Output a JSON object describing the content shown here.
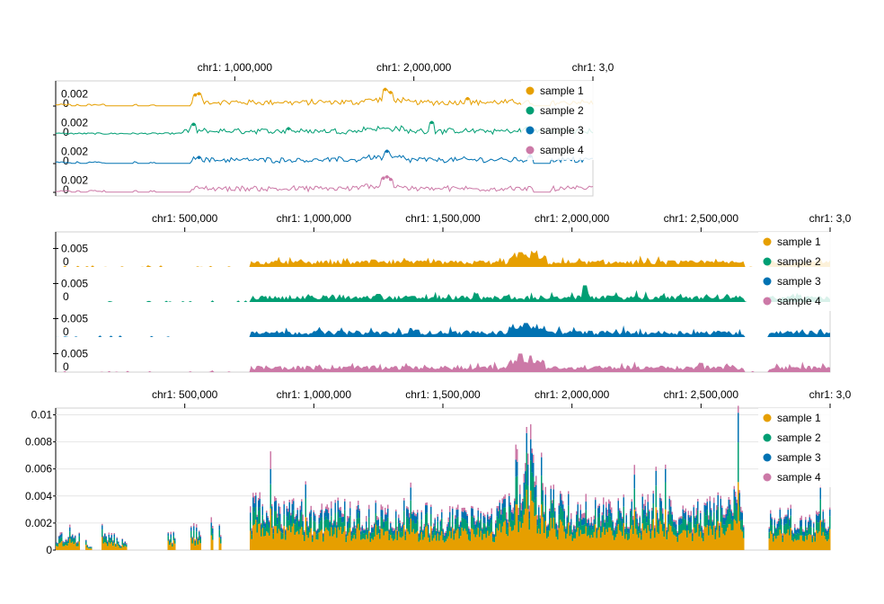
{
  "chart_data": [
    {
      "type": "line",
      "layout": "stacked-tracks",
      "x_ticks": [
        1000000,
        2000000,
        3000000
      ],
      "x_tick_labels": [
        "chr1: 1,000,000",
        "chr1: 2,000,000",
        "chr1: 3,0"
      ],
      "xlim": [
        0,
        3000000
      ],
      "track_ylim": [
        0,
        0.0035
      ],
      "track_y_ticks": [
        "0.002",
        "0"
      ],
      "legend_position": "top-right",
      "grid": false,
      "series": [
        {
          "name": "sample 1",
          "color": "#E69F00",
          "peaks": [
            [
              780000,
              0.0018
            ],
            [
              800000,
              0.002
            ],
            [
              1840000,
              0.0027
            ],
            [
              1870000,
              0.0022
            ],
            [
              2300000,
              0.0012
            ]
          ]
        },
        {
          "name": "sample 2",
          "color": "#009E73",
          "peaks": [
            [
              770000,
              0.0017
            ],
            [
              1300000,
              0.001
            ],
            [
              2100000,
              0.002
            ],
            [
              2630000,
              0.0011
            ]
          ]
        },
        {
          "name": "sample 3",
          "color": "#0072B2",
          "peaks": [
            [
              800000,
              0.001
            ],
            [
              1850000,
              0.002
            ],
            [
              2650000,
              0.0012
            ]
          ]
        },
        {
          "name": "sample 4",
          "color": "#CC79A7",
          "peaks": [
            [
              1830000,
              0.0023
            ],
            [
              1850000,
              0.0025
            ],
            [
              1870000,
              0.0021
            ]
          ]
        }
      ]
    },
    {
      "type": "area",
      "layout": "stacked-tracks",
      "x_ticks": [
        500000,
        1000000,
        1500000,
        2000000,
        2500000,
        3000000
      ],
      "x_tick_labels": [
        "chr1: 500,000",
        "chr1: 1,000,000",
        "chr1: 1,500,000",
        "chr1: 2,000,000",
        "chr1: 2,500,000",
        "chr1: 3,0"
      ],
      "xlim": [
        0,
        3000000
      ],
      "track_ylim": [
        0,
        0.009
      ],
      "track_y_ticks": [
        "0.005",
        "0"
      ],
      "legend_position": "top-right",
      "grid": false,
      "series": [
        {
          "name": "sample 1",
          "color": "#E69F00",
          "peaks": [
            [
              1800000,
              0.004
            ],
            [
              1850000,
              0.0038
            ],
            [
              1230000,
              0.002
            ]
          ]
        },
        {
          "name": "sample 2",
          "color": "#009E73",
          "peaks": [
            [
              2050000,
              0.0045
            ],
            [
              1250000,
              0.0022
            ]
          ]
        },
        {
          "name": "sample 3",
          "color": "#0072B2",
          "peaks": [
            [
              1820000,
              0.0038
            ],
            [
              1400000,
              0.002
            ]
          ]
        },
        {
          "name": "sample 4",
          "color": "#CC79A7",
          "peaks": [
            [
              1800000,
              0.005
            ],
            [
              1840000,
              0.0045
            ],
            [
              2500000,
              0.0025
            ]
          ]
        }
      ]
    },
    {
      "type": "bar",
      "layout": "stacked",
      "x_ticks": [
        500000,
        1000000,
        1500000,
        2000000,
        2500000,
        3000000
      ],
      "x_tick_labels": [
        "chr1: 500,000",
        "chr1: 1,000,000",
        "chr1: 1,500,000",
        "chr1: 2,000,000",
        "chr1: 2,500,000",
        "chr1: 3,0"
      ],
      "xlim": [
        0,
        3000000
      ],
      "ylim": [
        0,
        0.0105
      ],
      "y_ticks": [
        0,
        0.002,
        0.004,
        0.006,
        0.008,
        0.01
      ],
      "y_tick_labels": [
        "0",
        "0.002",
        "0.004",
        "0.006",
        "0.008",
        "0.01"
      ],
      "legend_position": "top-right",
      "grid": true,
      "series": [
        {
          "name": "sample 1",
          "color": "#E69F00"
        },
        {
          "name": "sample 2",
          "color": "#009E73"
        },
        {
          "name": "sample 3",
          "color": "#0072B2"
        },
        {
          "name": "sample 4",
          "color": "#CC79A7"
        }
      ],
      "coverage_profile": [
        [
          0,
          0.0008
        ],
        [
          60000,
          0.0015
        ],
        [
          90000,
          0.001
        ],
        [
          130000,
          0.0003
        ],
        [
          180000,
          0.0015
        ],
        [
          260000,
          0.0006
        ],
        [
          430000,
          0.001
        ],
        [
          630000,
          0.002
        ],
        [
          760000,
          0.0035
        ],
        [
          850000,
          0.0032
        ],
        [
          900000,
          0.003
        ],
        [
          1000000,
          0.0025
        ],
        [
          1100000,
          0.003
        ],
        [
          1200000,
          0.0028
        ],
        [
          1300000,
          0.0027
        ],
        [
          1400000,
          0.0025
        ],
        [
          1500000,
          0.0025
        ],
        [
          1600000,
          0.0025
        ],
        [
          1700000,
          0.0025
        ],
        [
          1750000,
          0.004
        ],
        [
          1800000,
          0.0065
        ],
        [
          1850000,
          0.0062
        ],
        [
          1900000,
          0.004
        ],
        [
          2000000,
          0.003
        ],
        [
          2100000,
          0.0032
        ],
        [
          2200000,
          0.003
        ],
        [
          2300000,
          0.0033
        ],
        [
          2400000,
          0.003
        ],
        [
          2500000,
          0.003
        ],
        [
          2600000,
          0.0032
        ],
        [
          2650000,
          0.004
        ],
        [
          2700000,
          0.0005
        ],
        [
          2760000,
          0.0025
        ],
        [
          3000000,
          0.0025
        ]
      ],
      "gaps": [
        [
          90000,
          110000
        ],
        [
          140000,
          175000
        ],
        [
          275000,
          430000
        ],
        [
          460000,
          520000
        ],
        [
          560000,
          600000
        ],
        [
          610000,
          630000
        ],
        [
          640000,
          750000
        ],
        [
          2665000,
          2760000
        ]
      ],
      "spikes": [
        [
          830000,
          0.0073
        ],
        [
          1820000,
          0.009
        ],
        [
          1840000,
          0.0093
        ],
        [
          1780000,
          0.0078
        ],
        [
          1880000,
          0.0068
        ],
        [
          2240000,
          0.0063
        ],
        [
          2360000,
          0.0063
        ],
        [
          2640000,
          0.0103
        ]
      ]
    }
  ]
}
